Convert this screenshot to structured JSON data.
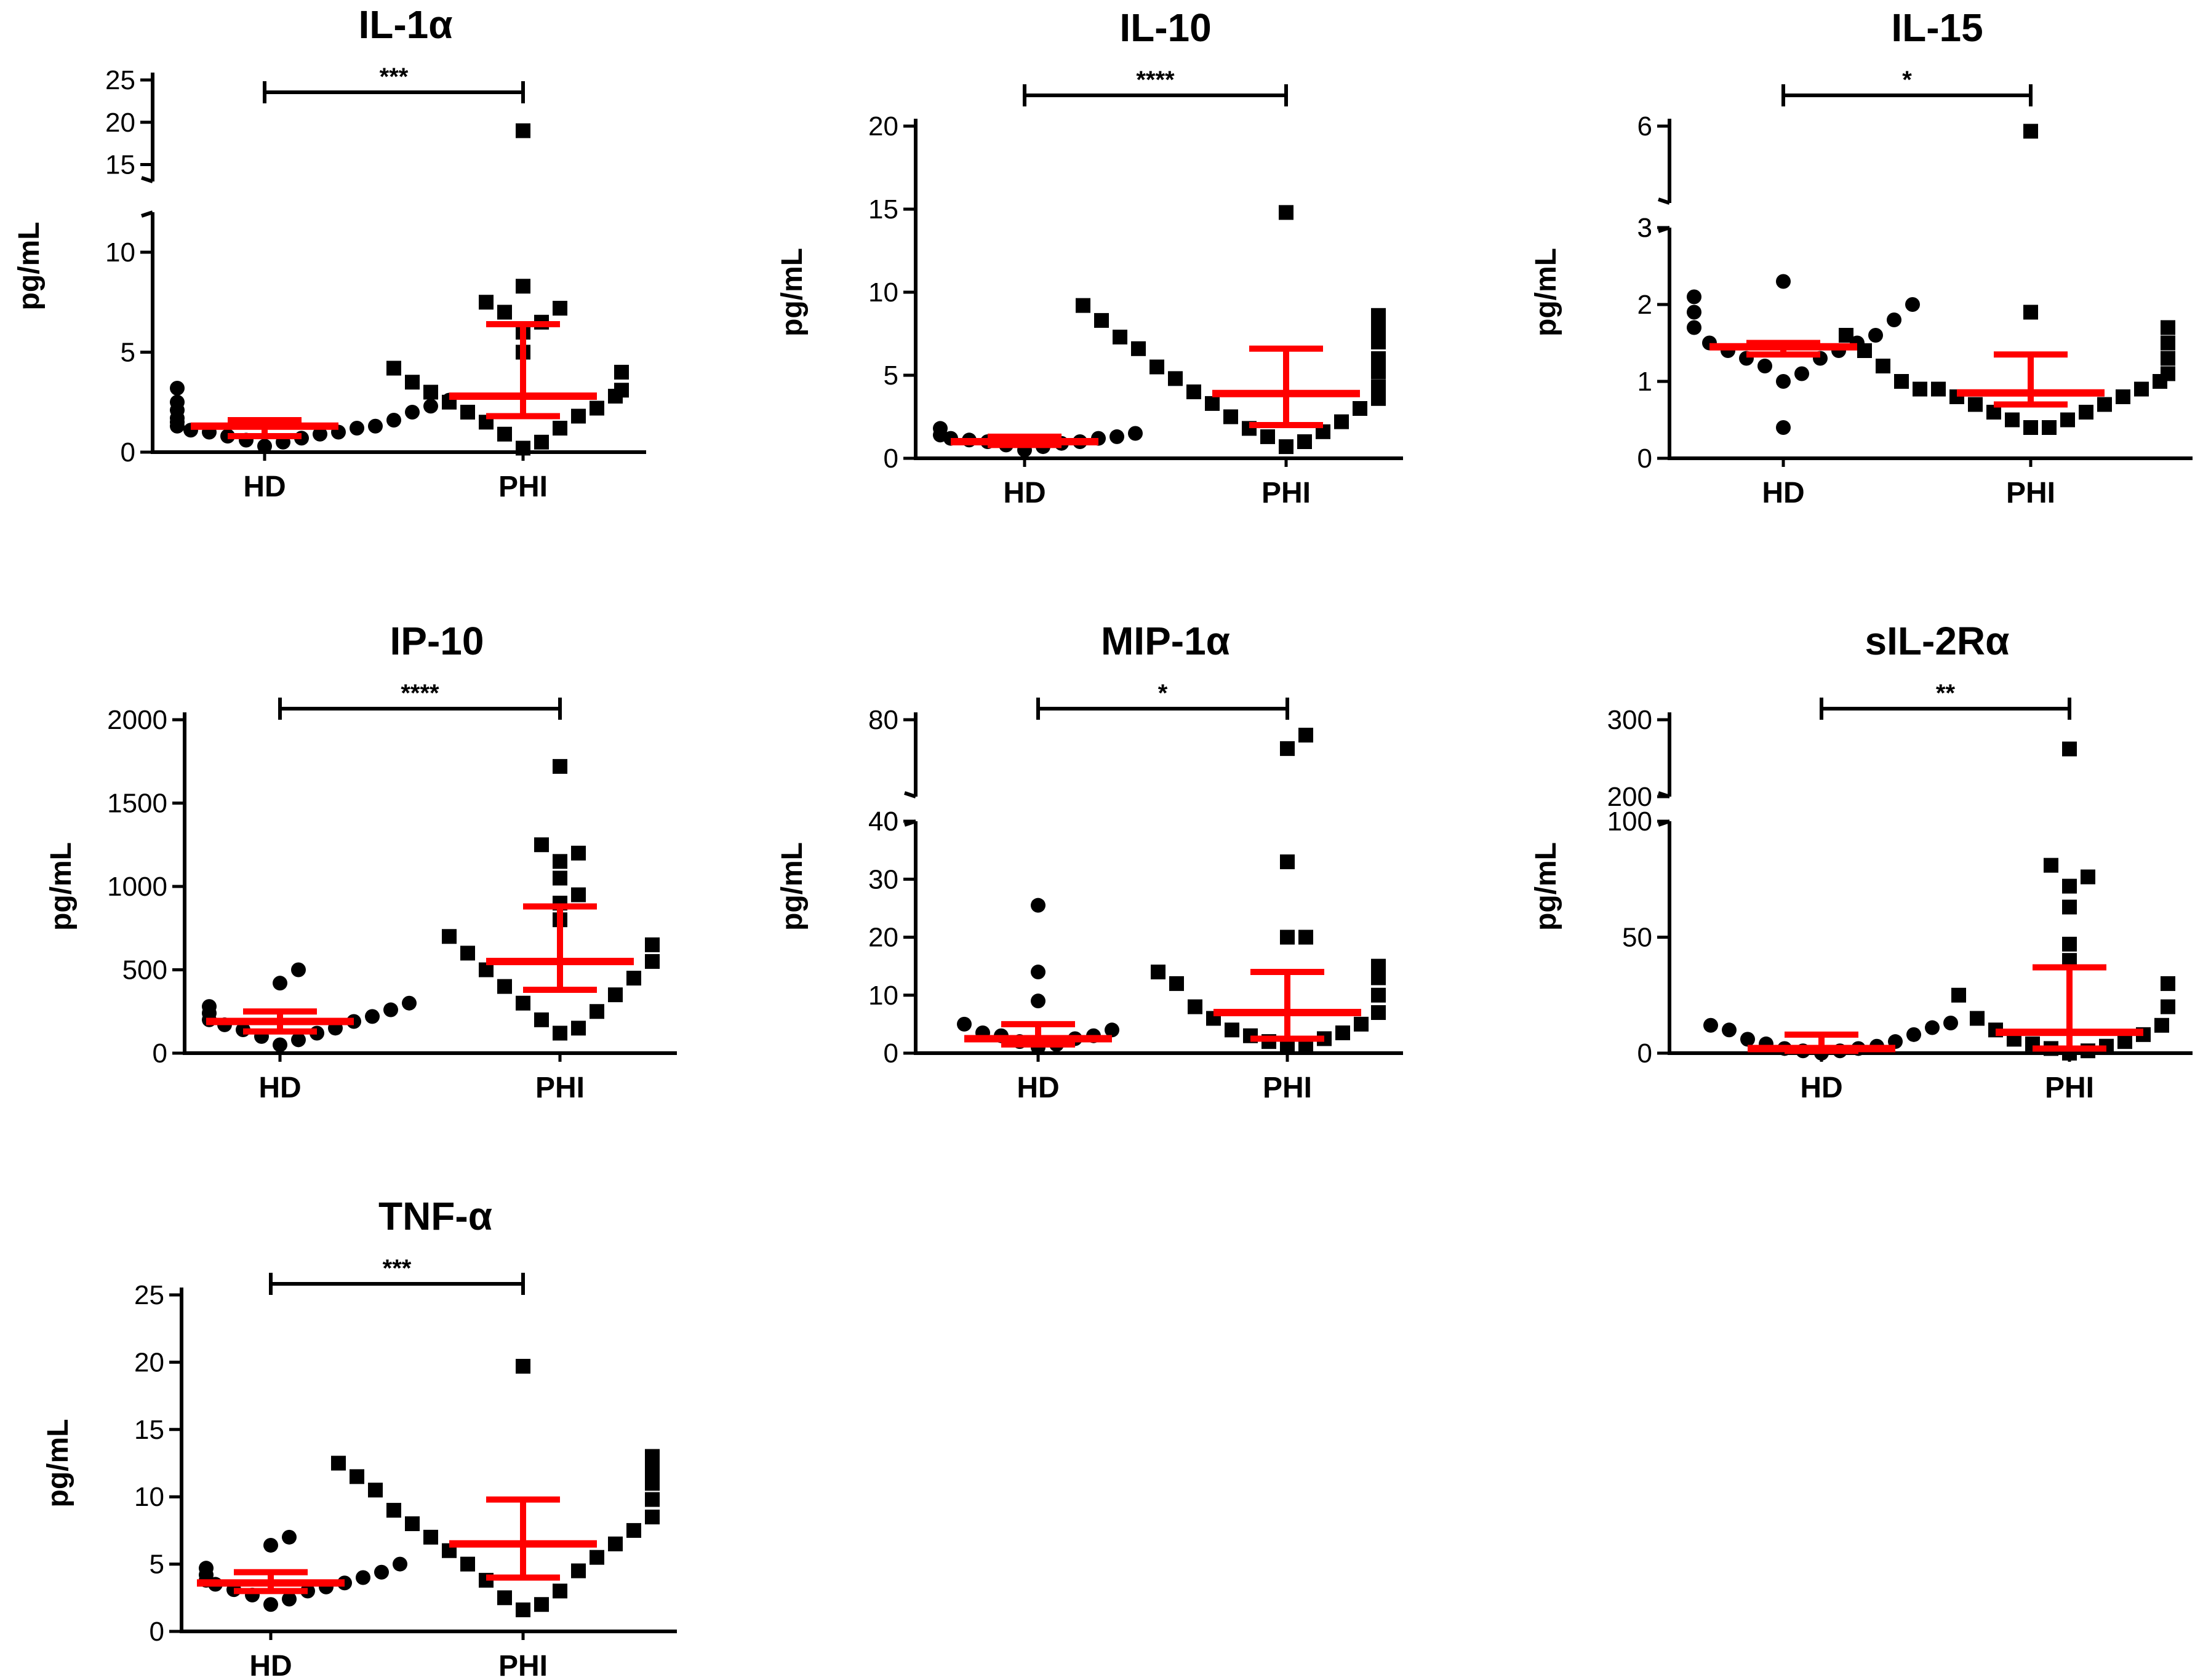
{
  "colors": {
    "summary": "#ff0000",
    "points": "#000000",
    "axis": "#000000"
  },
  "chart_data": [
    {
      "type": "scatter",
      "title": "IL-1α",
      "ylabel": "pg/mL",
      "categories": [
        "HD",
        "PHI"
      ],
      "significance": "***",
      "axis": {
        "lower": [
          0,
          12
        ],
        "upper": [
          13,
          25
        ],
        "lower_ticks": [
          0,
          5,
          10
        ],
        "upper_ticks": [
          15,
          20,
          25
        ]
      },
      "groups": [
        {
          "name": "HD",
          "marker": "circle",
          "median": 1.3,
          "q1": 0.8,
          "q3": 1.6,
          "values": [
            0.3,
            0.5,
            0.6,
            0.7,
            0.8,
            0.9,
            1.0,
            1.0,
            1.1,
            1.2,
            1.3,
            1.3,
            1.5,
            1.6,
            1.7,
            2.0,
            2.1,
            2.3,
            2.5,
            2.6,
            3.2
          ]
        },
        {
          "name": "PHI",
          "marker": "square",
          "median": 2.8,
          "q1": 1.8,
          "q3": 6.4,
          "values": [
            0.2,
            0.5,
            0.9,
            1.2,
            1.5,
            1.8,
            2.0,
            2.2,
            2.5,
            2.8,
            3.0,
            3.1,
            3.5,
            4.0,
            4.2,
            5.0,
            6.0,
            6.5,
            7.0,
            7.2,
            7.5,
            8.3,
            19.0
          ]
        }
      ]
    },
    {
      "type": "scatter",
      "title": "IL-10",
      "ylabel": "pg/mL",
      "categories": [
        "HD",
        "PHI"
      ],
      "significance": "****",
      "axis": {
        "lower": [
          0,
          20
        ],
        "lower_ticks": [
          0,
          5,
          10,
          15,
          20
        ]
      },
      "groups": [
        {
          "name": "HD",
          "marker": "circle",
          "median": 1.0,
          "q1": 0.8,
          "q3": 1.3,
          "values": [
            0.5,
            0.7,
            0.8,
            0.9,
            1.0,
            1.0,
            1.1,
            1.2,
            1.2,
            1.3,
            1.4,
            1.5,
            1.8
          ]
        },
        {
          "name": "PHI",
          "marker": "square",
          "median": 3.9,
          "q1": 2.0,
          "q3": 6.6,
          "values": [
            0.7,
            1.0,
            1.3,
            1.6,
            1.8,
            2.2,
            2.5,
            3.0,
            3.3,
            3.6,
            4.0,
            4.3,
            4.8,
            5.2,
            5.5,
            6.0,
            6.6,
            7.0,
            7.3,
            7.8,
            8.3,
            8.6,
            9.2,
            14.8
          ]
        }
      ]
    },
    {
      "type": "scatter",
      "title": "IL-15",
      "ylabel": "pg/mL",
      "categories": [
        "HD",
        "PHI"
      ],
      "significance": "*",
      "axis": {
        "lower": [
          0,
          3
        ],
        "upper": [
          3,
          6
        ],
        "lower_ticks": [
          0,
          1,
          2,
          3
        ],
        "upper_ticks": [
          3,
          6
        ]
      },
      "groups": [
        {
          "name": "HD",
          "marker": "circle",
          "median": 1.45,
          "q1": 1.35,
          "q3": 1.5,
          "values": [
            0.4,
            1.0,
            1.1,
            1.2,
            1.3,
            1.3,
            1.4,
            1.4,
            1.5,
            1.5,
            1.6,
            1.7,
            1.8,
            1.9,
            2.0,
            2.1,
            2.3
          ]
        },
        {
          "name": "PHI",
          "marker": "square",
          "median": 0.85,
          "q1": 0.7,
          "q3": 1.35,
          "values": [
            0.4,
            0.4,
            0.5,
            0.5,
            0.6,
            0.6,
            0.7,
            0.7,
            0.8,
            0.8,
            0.9,
            0.9,
            0.9,
            1.0,
            1.0,
            1.1,
            1.2,
            1.3,
            1.4,
            1.5,
            1.6,
            1.7,
            1.9,
            5.8
          ]
        }
      ]
    },
    {
      "type": "scatter",
      "title": "IP-10",
      "ylabel": "pg/mL",
      "categories": [
        "HD",
        "PHI"
      ],
      "significance": "****",
      "axis": {
        "lower": [
          0,
          2000
        ],
        "lower_ticks": [
          0,
          500,
          1000,
          1500,
          2000
        ]
      },
      "groups": [
        {
          "name": "HD",
          "marker": "circle",
          "median": 190,
          "q1": 130,
          "q3": 250,
          "values": [
            50,
            80,
            100,
            120,
            140,
            150,
            170,
            190,
            200,
            220,
            240,
            260,
            280,
            300,
            420,
            500
          ]
        },
        {
          "name": "PHI",
          "marker": "square",
          "median": 550,
          "q1": 380,
          "q3": 880,
          "values": [
            120,
            150,
            200,
            250,
            300,
            350,
            400,
            450,
            500,
            550,
            600,
            650,
            700,
            800,
            900,
            950,
            1050,
            1150,
            1200,
            1250,
            1720
          ]
        }
      ]
    },
    {
      "type": "scatter",
      "title": "MIP-1α",
      "ylabel": "pg/mL",
      "categories": [
        "HD",
        "PHI"
      ],
      "significance": "*",
      "axis": {
        "lower": [
          0,
          40
        ],
        "upper": [
          40,
          80
        ],
        "lower_ticks": [
          0,
          10,
          20,
          30,
          40
        ],
        "upper_ticks": [
          40,
          80
        ]
      },
      "groups": [
        {
          "name": "HD",
          "marker": "circle",
          "median": 2.5,
          "q1": 1.5,
          "q3": 5.0,
          "values": [
            1.0,
            1.5,
            2.0,
            2.5,
            3.0,
            3.0,
            3.5,
            4.0,
            5.0,
            9.0,
            14.0,
            25.5
          ]
        },
        {
          "name": "PHI",
          "marker": "square",
          "median": 7.0,
          "q1": 2.5,
          "q3": 14.0,
          "values": [
            1.0,
            1.5,
            2.0,
            2.5,
            3.0,
            3.5,
            4.0,
            5.0,
            6.0,
            7.0,
            8.0,
            10.0,
            12.0,
            13.0,
            14.0,
            15.0,
            20.0,
            20.0,
            33.0,
            65.0,
            72.0
          ]
        }
      ]
    },
    {
      "type": "scatter",
      "title": "sIL-2Rα",
      "ylabel": "pg/mL",
      "categories": [
        "HD",
        "PHI"
      ],
      "significance": "**",
      "axis": {
        "lower": [
          0,
          100
        ],
        "upper": [
          200,
          300
        ],
        "lower_ticks": [
          0,
          50,
          100
        ],
        "upper_ticks": [
          200,
          300
        ]
      },
      "groups": [
        {
          "name": "HD",
          "marker": "circle",
          "median": 2,
          "q1": 1,
          "q3": 8,
          "values": [
            0,
            1,
            1,
            2,
            2,
            3,
            4,
            5,
            6,
            8,
            10,
            11,
            12,
            13
          ]
        },
        {
          "name": "PHI",
          "marker": "square",
          "median": 9,
          "q1": 2,
          "q3": 37,
          "values": [
            0,
            1,
            2,
            3,
            4,
            5,
            6,
            8,
            10,
            12,
            15,
            20,
            25,
            30,
            40,
            47,
            63,
            72,
            76,
            81,
            262
          ]
        }
      ]
    },
    {
      "type": "scatter",
      "title": "TNF-α",
      "ylabel": "pg/mL",
      "categories": [
        "HD",
        "PHI"
      ],
      "significance": "***",
      "axis": {
        "lower": [
          0,
          25
        ],
        "lower_ticks": [
          0,
          5,
          10,
          15,
          20,
          25
        ]
      },
      "groups": [
        {
          "name": "HD",
          "marker": "circle",
          "median": 3.6,
          "q1": 3.0,
          "q3": 4.4,
          "values": [
            2.0,
            2.4,
            2.7,
            3.0,
            3.1,
            3.3,
            3.5,
            3.6,
            3.8,
            4.0,
            4.2,
            4.4,
            4.7,
            5.0,
            6.4,
            7.0
          ]
        },
        {
          "name": "PHI",
          "marker": "square",
          "median": 6.5,
          "q1": 4.0,
          "q3": 9.8,
          "values": [
            1.6,
            2.0,
            2.5,
            3.0,
            3.8,
            4.5,
            5.0,
            5.5,
            6.0,
            6.5,
            7.0,
            7.5,
            8.0,
            8.5,
            9.0,
            9.8,
            10.5,
            11.0,
            11.5,
            12.0,
            12.5,
            13.0,
            19.7
          ]
        }
      ]
    }
  ]
}
